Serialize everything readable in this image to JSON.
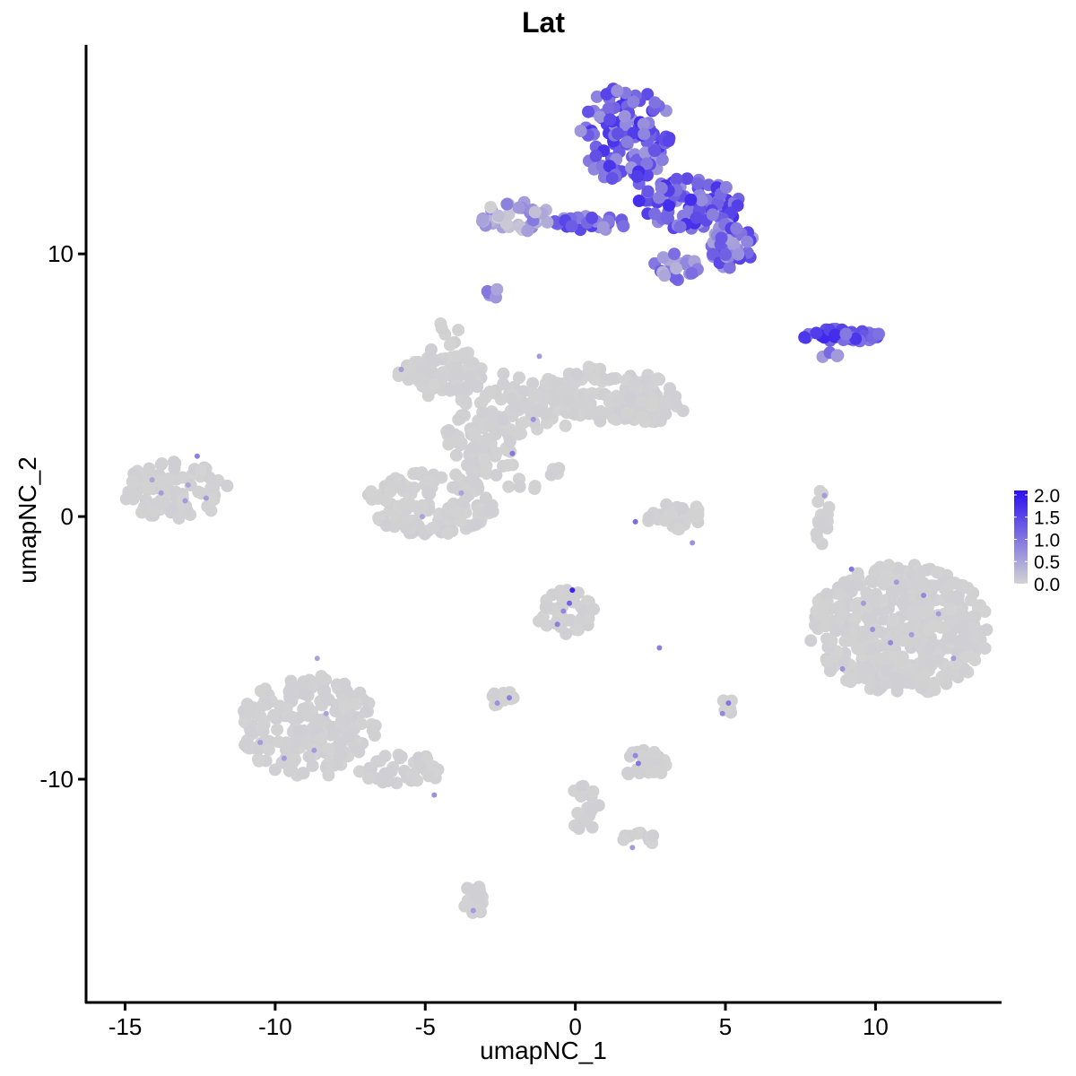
{
  "chart_data": {
    "type": "scatter",
    "title": "Lat",
    "xlabel": "umapNC_1",
    "ylabel": "umapNC_2",
    "xlim": [
      -16.3,
      14.2
    ],
    "ylim": [
      -18.5,
      18.3
    ],
    "xticks": [
      -15,
      -10,
      -5,
      0,
      5,
      10
    ],
    "xtick_labels": [
      "-15",
      "-10",
      "-5",
      "0",
      "5",
      "10"
    ],
    "yticks": [
      -10,
      0,
      10
    ],
    "ytick_labels": [
      "-10",
      "0",
      "10"
    ],
    "grid": false,
    "legend": {
      "placement": "right",
      "type": "colorbar",
      "labels": [
        "2.0",
        "1.5",
        "1.0",
        "0.5",
        "0.0"
      ],
      "values": [
        2.0,
        1.5,
        1.0,
        0.5,
        0.0
      ],
      "range": [
        0.0,
        2.1
      ]
    },
    "colors": {
      "low": "#d3d3d3",
      "high": "#2a0ff0"
    },
    "clusters": [
      {
        "cx": 1.7,
        "cy": 14.5,
        "rx": 1.6,
        "ry": 1.9,
        "n": 130,
        "lo": 0.6,
        "hi": 1.8
      },
      {
        "cx": 3.8,
        "cy": 11.9,
        "rx": 1.7,
        "ry": 1.0,
        "n": 100,
        "lo": 0.6,
        "hi": 1.8
      },
      {
        "cx": 5.2,
        "cy": 10.3,
        "rx": 0.8,
        "ry": 0.9,
        "n": 50,
        "lo": 0.5,
        "hi": 1.6
      },
      {
        "cx": 3.3,
        "cy": 9.5,
        "rx": 0.8,
        "ry": 0.5,
        "n": 22,
        "lo": 0.3,
        "hi": 1.3
      },
      {
        "cx": 0.5,
        "cy": 11.2,
        "rx": 1.4,
        "ry": 0.3,
        "n": 26,
        "lo": 0.6,
        "hi": 1.6
      },
      {
        "cx": -2.0,
        "cy": 11.4,
        "rx": 1.2,
        "ry": 0.6,
        "n": 40,
        "lo": 0.0,
        "hi": 1.0
      },
      {
        "cx": -2.7,
        "cy": 8.5,
        "rx": 0.3,
        "ry": 0.25,
        "n": 5,
        "lo": 0.4,
        "hi": 1.0
      },
      {
        "cx": 8.9,
        "cy": 6.9,
        "rx": 1.4,
        "ry": 0.25,
        "n": 40,
        "lo": 0.9,
        "hi": 1.9
      },
      {
        "cx": 8.4,
        "cy": 6.1,
        "rx": 0.4,
        "ry": 0.15,
        "n": 5,
        "lo": 0.6,
        "hi": 1.3
      },
      {
        "cx": -4.4,
        "cy": 5.4,
        "rx": 1.5,
        "ry": 0.7,
        "n": 70,
        "lo": 0.0,
        "hi": 0.05
      },
      {
        "cx": -1.8,
        "cy": 4.3,
        "rx": 2.2,
        "ry": 1.2,
        "n": 100,
        "lo": 0.0,
        "hi": 0.05
      },
      {
        "cx": 1.2,
        "cy": 4.7,
        "rx": 2.0,
        "ry": 1.1,
        "n": 100,
        "lo": 0.0,
        "hi": 0.05
      },
      {
        "cx": 2.5,
        "cy": 4.2,
        "rx": 1.2,
        "ry": 0.6,
        "n": 40,
        "lo": 0.0,
        "hi": 0.05
      },
      {
        "cx": -3.2,
        "cy": 2.8,
        "rx": 1.2,
        "ry": 1.2,
        "n": 60,
        "lo": 0.0,
        "hi": 0.05
      },
      {
        "cx": -4.8,
        "cy": 0.5,
        "rx": 2.2,
        "ry": 1.2,
        "n": 130,
        "lo": 0.0,
        "hi": 0.05
      },
      {
        "cx": -13.3,
        "cy": 1.0,
        "rx": 1.8,
        "ry": 1.1,
        "n": 90,
        "lo": 0.0,
        "hi": 0.05
      },
      {
        "cx": 3.3,
        "cy": 0.0,
        "rx": 0.9,
        "ry": 0.7,
        "n": 30,
        "lo": 0.0,
        "hi": 0.05
      },
      {
        "cx": 10.8,
        "cy": -4.3,
        "rx": 3.0,
        "ry": 2.5,
        "n": 420,
        "lo": 0.0,
        "hi": 0.05
      },
      {
        "cx": -0.3,
        "cy": -3.7,
        "rx": 1.0,
        "ry": 0.9,
        "n": 40,
        "lo": 0.0,
        "hi": 0.05
      },
      {
        "cx": -8.9,
        "cy": -8.0,
        "rx": 2.3,
        "ry": 2.0,
        "n": 200,
        "lo": 0.0,
        "hi": 0.05
      },
      {
        "cx": -5.8,
        "cy": -9.6,
        "rx": 1.5,
        "ry": 0.6,
        "n": 40,
        "lo": 0.0,
        "hi": 0.05
      },
      {
        "cx": -3.4,
        "cy": -14.6,
        "rx": 0.4,
        "ry": 0.6,
        "n": 16,
        "lo": 0.0,
        "hi": 0.05
      },
      {
        "cx": 2.3,
        "cy": -9.4,
        "rx": 0.8,
        "ry": 0.6,
        "n": 25,
        "lo": 0.0,
        "hi": 0.05
      },
      {
        "cx": -2.5,
        "cy": -6.9,
        "rx": 0.5,
        "ry": 0.3,
        "n": 10,
        "lo": 0.0,
        "hi": 0.05
      },
      {
        "cx": 0.3,
        "cy": -11.0,
        "rx": 0.5,
        "ry": 1.0,
        "n": 18,
        "lo": 0.0,
        "hi": 0.05
      },
      {
        "cx": 2.0,
        "cy": -12.3,
        "rx": 0.7,
        "ry": 0.3,
        "n": 10,
        "lo": 0.0,
        "hi": 0.05
      },
      {
        "cx": 8.2,
        "cy": -0.2,
        "rx": 0.3,
        "ry": 1.2,
        "n": 14,
        "lo": 0.0,
        "hi": 0.05
      },
      {
        "cx": 5.1,
        "cy": -7.3,
        "rx": 0.25,
        "ry": 0.4,
        "n": 6,
        "lo": 0.0,
        "hi": 0.05
      },
      {
        "cx": -4.2,
        "cy": 5.5,
        "rx": 0.8,
        "ry": 2.0,
        "n": 16,
        "lo": 0.0,
        "hi": 0.05
      },
      {
        "cx": -1.5,
        "cy": 1.5,
        "rx": 1.2,
        "ry": 0.6,
        "n": 12,
        "lo": 0.0,
        "hi": 0.05
      }
    ],
    "highlights": [
      {
        "x": -12.6,
        "y": 2.3,
        "v": 0.9
      },
      {
        "x": -13.8,
        "y": 0.9,
        "v": 0.6
      },
      {
        "x": -12.3,
        "y": 0.7,
        "v": 0.6
      },
      {
        "x": -14.1,
        "y": 1.4,
        "v": 0.5
      },
      {
        "x": -13.0,
        "y": 0.6,
        "v": 0.6
      },
      {
        "x": -12.9,
        "y": 1.2,
        "v": 0.5
      },
      {
        "x": -8.6,
        "y": -5.4,
        "v": 0.5
      },
      {
        "x": -9.7,
        "y": -9.2,
        "v": 0.6
      },
      {
        "x": -8.3,
        "y": -7.5,
        "v": 0.5
      },
      {
        "x": -10.5,
        "y": -8.6,
        "v": 0.6
      },
      {
        "x": -8.7,
        "y": -8.9,
        "v": 0.6
      },
      {
        "x": -4.7,
        "y": -10.6,
        "v": 0.7
      },
      {
        "x": -3.4,
        "y": -15.0,
        "v": 0.6
      },
      {
        "x": -3.8,
        "y": 0.9,
        "v": 0.5
      },
      {
        "x": -5.1,
        "y": 0.0,
        "v": 0.5
      },
      {
        "x": -5.8,
        "y": 5.6,
        "v": 0.6
      },
      {
        "x": -2.1,
        "y": 2.4,
        "v": 1.0
      },
      {
        "x": -1.4,
        "y": 3.7,
        "v": 0.7
      },
      {
        "x": -1.2,
        "y": 6.1,
        "v": 0.6
      },
      {
        "x": -0.1,
        "y": -2.8,
        "v": 1.9
      },
      {
        "x": -0.2,
        "y": -3.3,
        "v": 1.2
      },
      {
        "x": -0.6,
        "y": -4.1,
        "v": 0.9
      },
      {
        "x": -0.4,
        "y": -3.6,
        "v": 0.8
      },
      {
        "x": -2.2,
        "y": -6.9,
        "v": 0.9
      },
      {
        "x": -2.6,
        "y": -7.1,
        "v": 0.7
      },
      {
        "x": 2.8,
        "y": -5.0,
        "v": 0.9
      },
      {
        "x": 2.1,
        "y": -9.4,
        "v": 1.0
      },
      {
        "x": 2.0,
        "y": -9.1,
        "v": 0.8
      },
      {
        "x": 1.9,
        "y": -12.6,
        "v": 0.6
      },
      {
        "x": 5.1,
        "y": -7.1,
        "v": 1.0
      },
      {
        "x": 4.9,
        "y": -7.5,
        "v": 0.8
      },
      {
        "x": 2.0,
        "y": -0.2,
        "v": 1.1
      },
      {
        "x": 3.9,
        "y": -1.0,
        "v": 0.7
      },
      {
        "x": 8.3,
        "y": 0.8,
        "v": 0.6
      },
      {
        "x": 9.2,
        "y": -2.0,
        "v": 1.0
      },
      {
        "x": 10.7,
        "y": -2.5,
        "v": 0.6
      },
      {
        "x": 11.6,
        "y": -3.0,
        "v": 0.8
      },
      {
        "x": 9.9,
        "y": -4.3,
        "v": 0.7
      },
      {
        "x": 11.2,
        "y": -4.5,
        "v": 0.6
      },
      {
        "x": 12.6,
        "y": -5.4,
        "v": 0.6
      },
      {
        "x": 8.9,
        "y": -5.8,
        "v": 0.7
      },
      {
        "x": 10.5,
        "y": -4.8,
        "v": 0.8
      },
      {
        "x": 12.1,
        "y": -3.7,
        "v": 0.6
      },
      {
        "x": 9.6,
        "y": -3.3,
        "v": 0.6
      }
    ]
  }
}
